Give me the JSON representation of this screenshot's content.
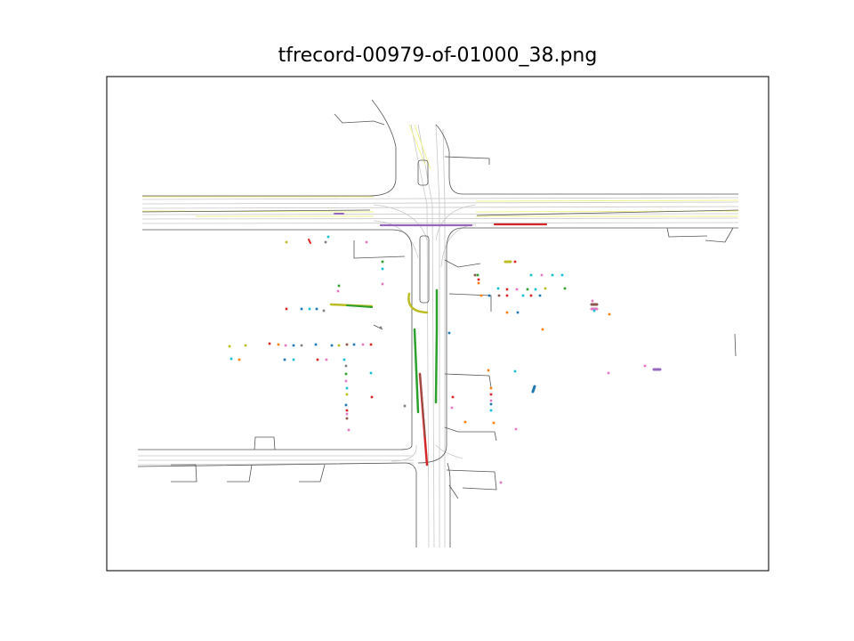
{
  "title": "tfrecord-00979-of-01000_38.png",
  "colors": {
    "road_edge": "#555555",
    "lane_center": "#c8c8c8",
    "yellow_line": "#f2f28a",
    "frame": "#222222",
    "agent_palette": [
      "#1f77b4",
      "#ff7f0e",
      "#2ca02c",
      "#d62728",
      "#9467bd",
      "#8c564b",
      "#e377c2",
      "#7f7f7f",
      "#bcbd22",
      "#17becf"
    ]
  },
  "legend": "none",
  "axes": "hidden"
}
